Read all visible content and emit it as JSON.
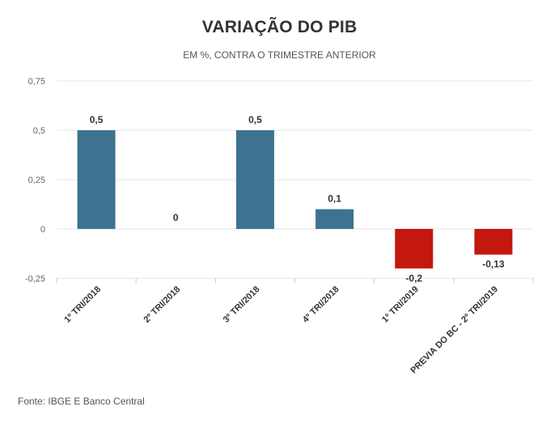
{
  "page": {
    "title": "VARIAÇÃO DO PIB",
    "subtitle": "EM %, CONTRA O TRIMESTRE ANTERIOR",
    "source": "Fonte: IBGE E Banco Central"
  },
  "colors": {
    "positive": "#3d7390",
    "negative": "#c4170e",
    "grid": "#e6e6e6",
    "axis_text": "#666666",
    "label_text": "#333333"
  },
  "chart_data": {
    "type": "bar",
    "title": "VARIAÇÃO DO PIB",
    "subtitle": "EM %, CONTRA O TRIMESTRE ANTERIOR",
    "categories": [
      "1º TRI/2018",
      "2º TRI/2018",
      "3º TRI/2018",
      "4º TRI/2018",
      "1º TRI/2019",
      "PREVIA DO BC - 2º TRI/2019"
    ],
    "values": [
      0.5,
      0,
      0.5,
      0.1,
      -0.2,
      -0.13
    ],
    "data_labels": [
      "0,5",
      "0",
      "0,5",
      "0,1",
      "-0,2",
      "-0,13"
    ],
    "yticks": [
      0.75,
      0.5,
      0.25,
      0,
      -0.25
    ],
    "ytick_labels": [
      "0,75",
      "0,5",
      "0,25",
      "0",
      "-0,25"
    ],
    "ylim": [
      -0.25,
      0.75
    ],
    "xlabel": "",
    "ylabel": "",
    "grid": true,
    "legend": "none"
  }
}
